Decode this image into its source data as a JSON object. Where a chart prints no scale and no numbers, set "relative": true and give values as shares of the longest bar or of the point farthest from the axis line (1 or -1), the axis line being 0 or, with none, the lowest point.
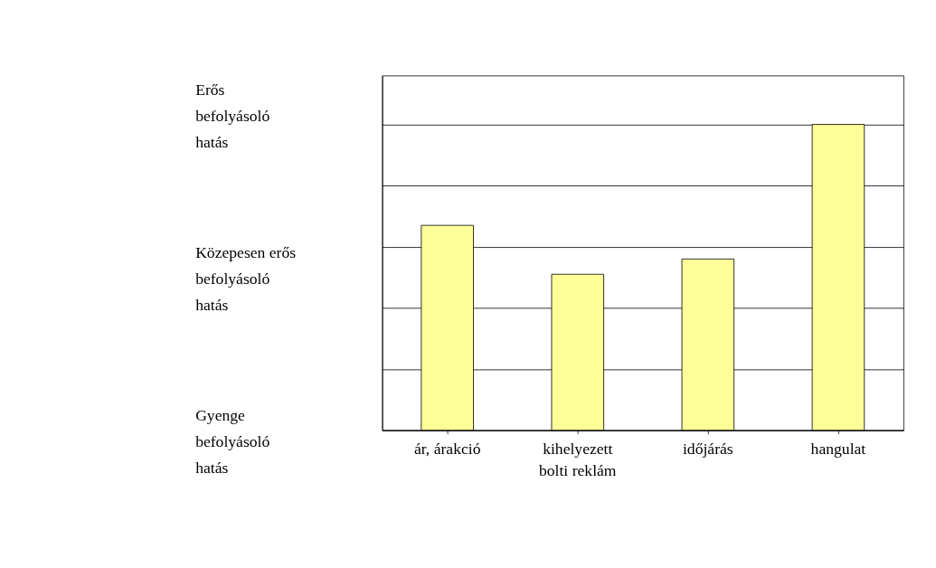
{
  "chart_data": {
    "type": "bar",
    "categories": [
      "ár, árakció",
      "kihelyezett\nbolti reklám",
      "időjárás",
      "hangulat"
    ],
    "values": [
      0.67,
      0.51,
      0.56,
      1
    ],
    "relative": true,
    "color": "#ffff99",
    "annotations": [
      "Erős\nbefolyásoló\nhatás",
      "Közepesen erős\nbefolyásoló\nhatás",
      "Gyenge\nbefolyásoló\nhatás"
    ],
    "grid": "y"
  }
}
